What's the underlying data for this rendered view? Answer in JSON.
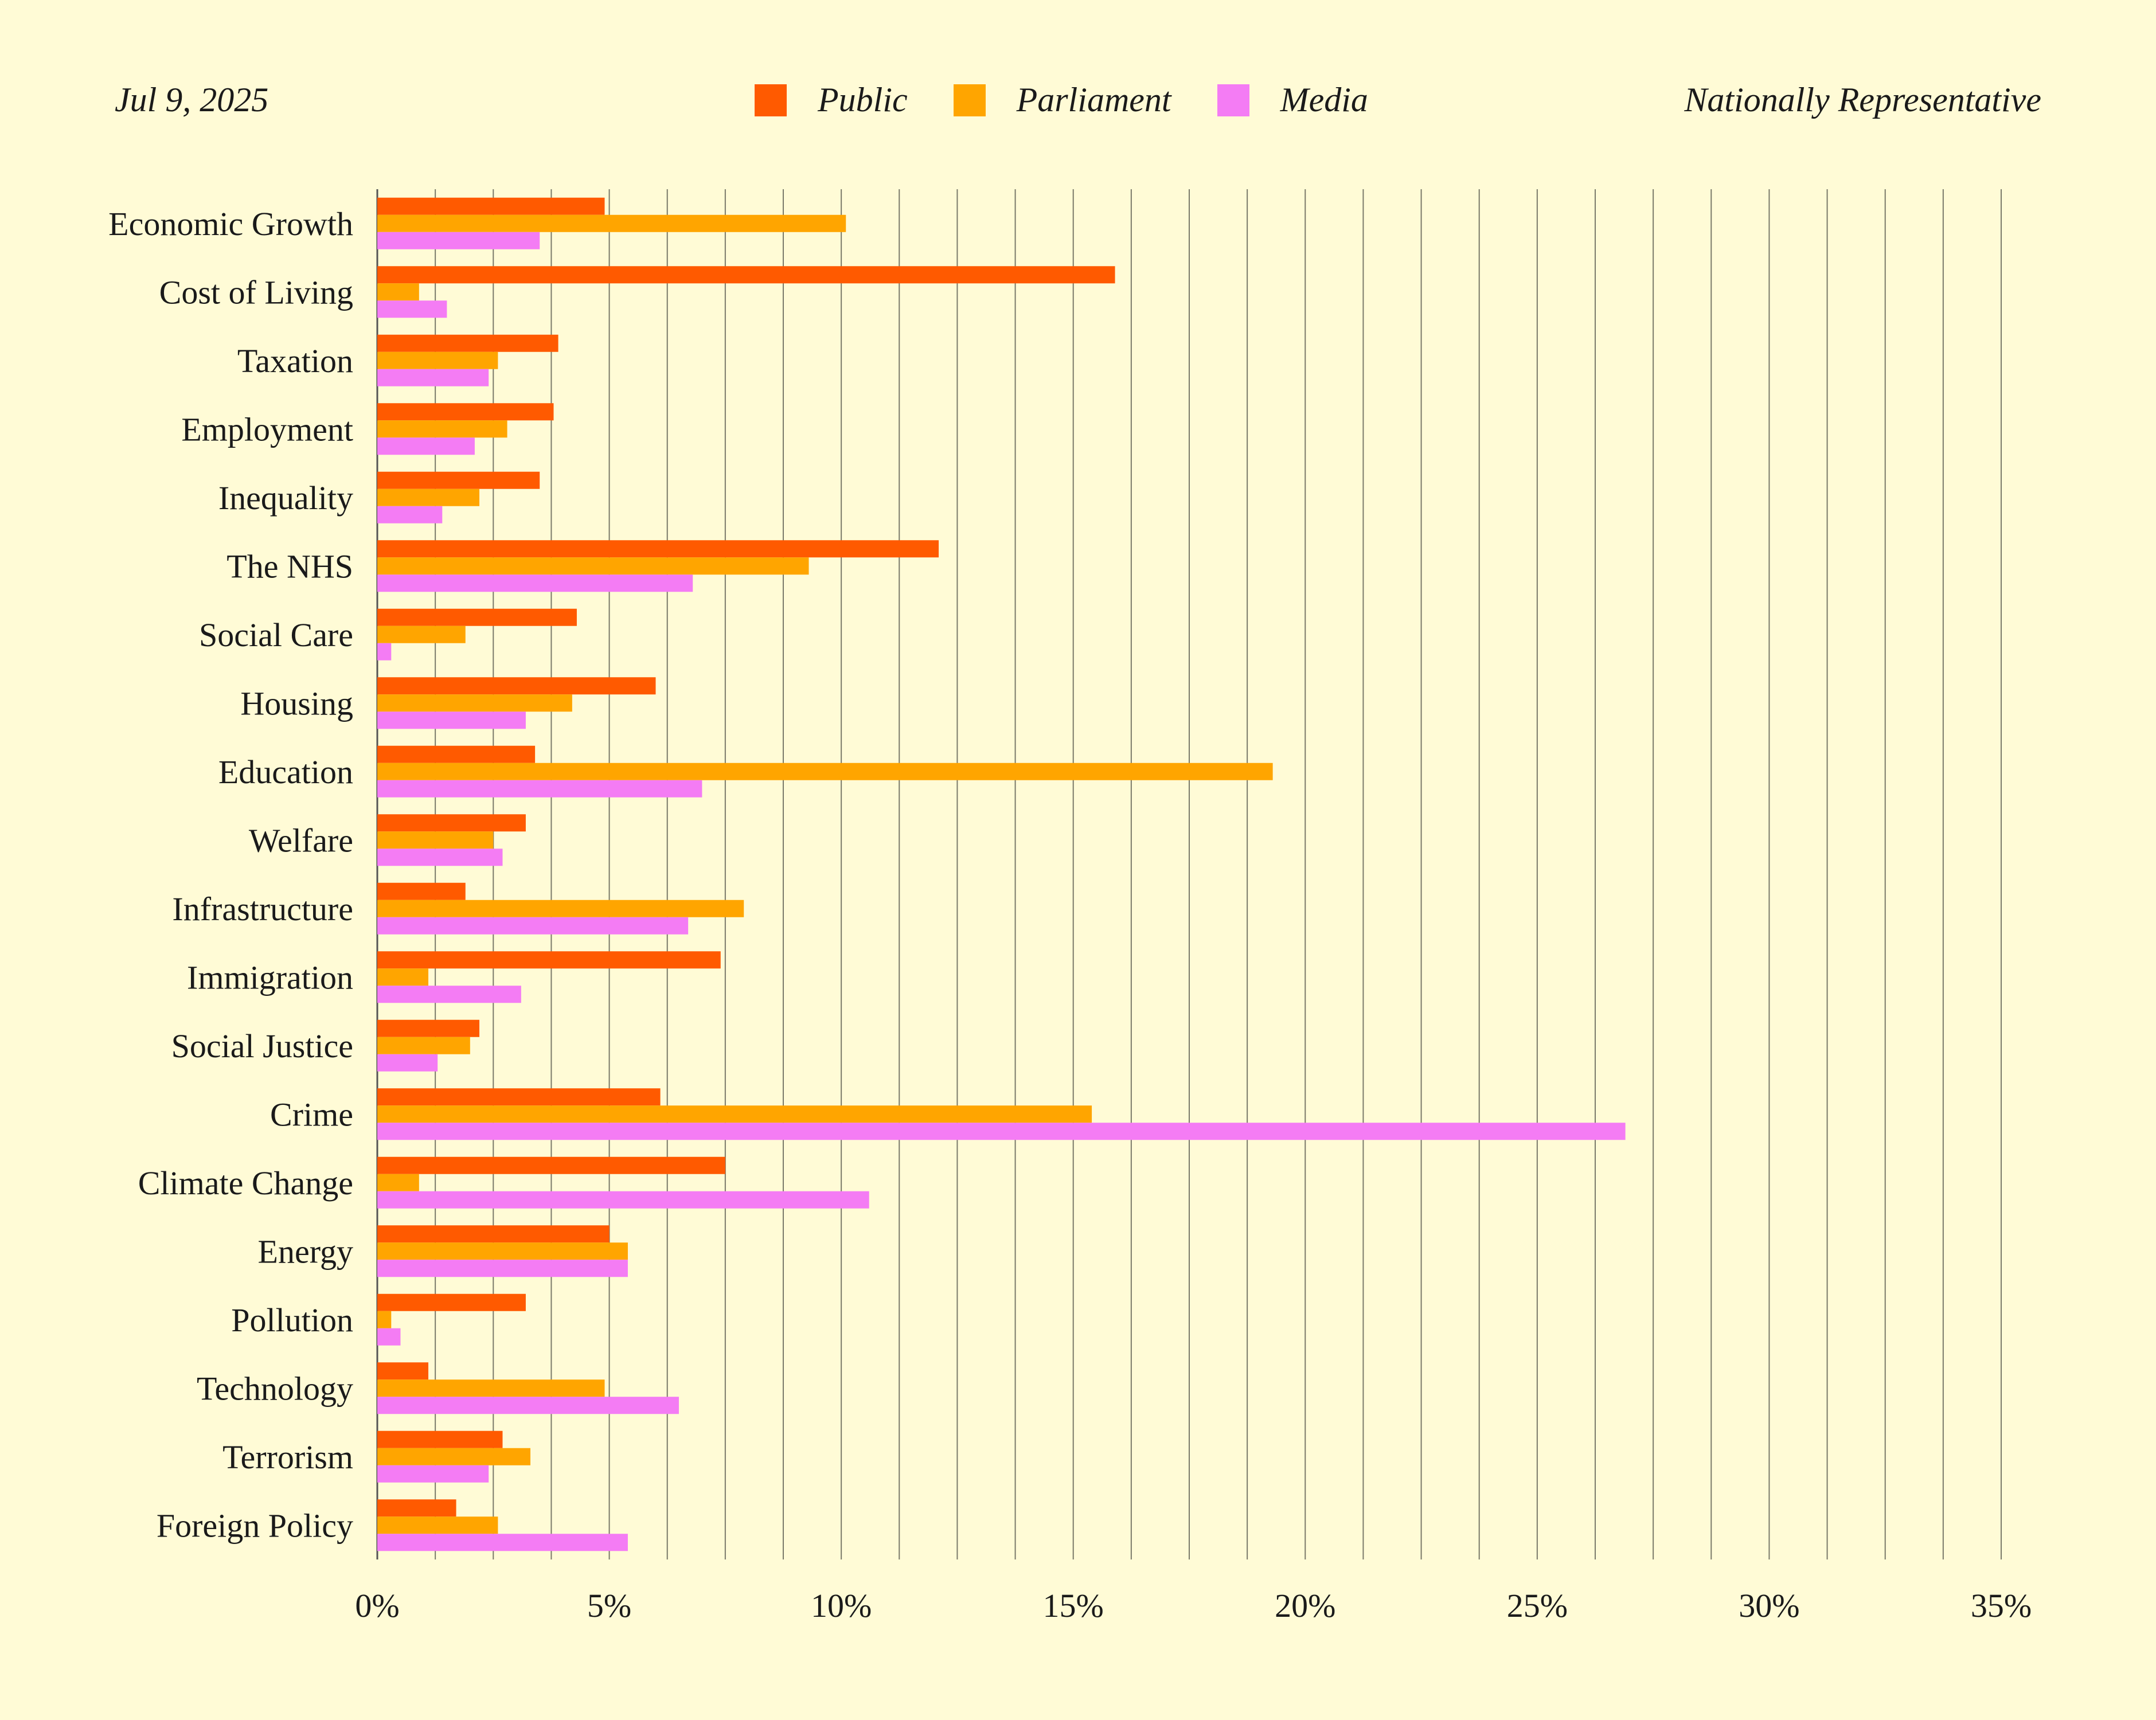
{
  "header": {
    "date": "Jul 9, 2025",
    "subtitle": "Nationally Representative"
  },
  "colors": {
    "background": "#fffbd6",
    "public": "#ff5a00",
    "parliament": "#ffa500",
    "media": "#f47cf4",
    "grid": "#7a7a6a"
  },
  "chart_data": {
    "type": "bar",
    "orientation": "horizontal",
    "title": "",
    "xlabel": "",
    "ylabel": "",
    "xlim": [
      0,
      35
    ],
    "x_ticks": [
      "0%",
      "5%",
      "10%",
      "15%",
      "20%",
      "25%",
      "30%",
      "35%"
    ],
    "grid": true,
    "legend_position": "top-center",
    "categories": [
      "Economic Growth",
      "Cost of Living",
      "Taxation",
      "Employment",
      "Inequality",
      "The NHS",
      "Social Care",
      "Housing",
      "Education",
      "Welfare",
      "Infrastructure",
      "Immigration",
      "Social Justice",
      "Crime",
      "Climate Change",
      "Energy",
      "Pollution",
      "Technology",
      "Terrorism",
      "Foreign Policy"
    ],
    "series": [
      {
        "name": "Public",
        "color": "#ff5a00",
        "values": [
          4.9,
          15.9,
          3.9,
          3.8,
          3.5,
          12.1,
          4.3,
          6.0,
          3.4,
          3.2,
          1.9,
          7.4,
          2.2,
          6.1,
          7.5,
          5.0,
          3.2,
          1.1,
          2.7,
          1.7
        ]
      },
      {
        "name": "Parliament",
        "color": "#ffa500",
        "values": [
          10.1,
          0.9,
          2.6,
          2.8,
          2.2,
          9.3,
          1.9,
          4.2,
          19.3,
          2.5,
          7.9,
          1.1,
          2.0,
          15.4,
          0.9,
          5.4,
          0.3,
          4.9,
          3.3,
          2.6
        ]
      },
      {
        "name": "Media",
        "color": "#f47cf4",
        "values": [
          3.5,
          1.5,
          2.4,
          2.1,
          1.4,
          6.8,
          0.3,
          3.2,
          7.0,
          2.7,
          6.7,
          3.1,
          1.3,
          26.9,
          10.6,
          5.4,
          0.5,
          6.5,
          2.4,
          5.4
        ]
      }
    ]
  }
}
